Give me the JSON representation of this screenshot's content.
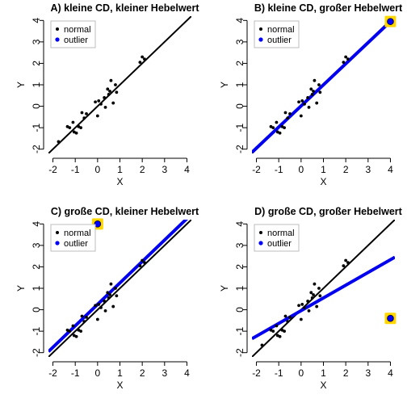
{
  "colors": {
    "normal_points": "#000000",
    "reference_line": "#000000",
    "outlier_point": "#0000ff",
    "outlier_ring": "#ffd700",
    "fit_line": "#0000ee"
  },
  "chart_data": [
    {
      "type": "scatter",
      "title": "A)  kleine CD, kleiner Hebelwert",
      "xlabel": "X",
      "ylabel": "Y",
      "xlim": [
        -2.2,
        4.2
      ],
      "ylim": [
        -2.2,
        4.2
      ],
      "xticks": [
        -2,
        -1,
        0,
        1,
        2,
        3,
        4
      ],
      "yticks": [
        -2,
        -1,
        0,
        1,
        2,
        3,
        4
      ],
      "legend": {
        "position": "top-left",
        "entries": [
          "normal",
          "outlier"
        ]
      },
      "series": [
        {
          "name": "normal",
          "points": [
            [
              -1.75,
              -1.65
            ],
            [
              -1.35,
              -0.95
            ],
            [
              -1.25,
              -1.0
            ],
            [
              -1.1,
              -0.75
            ],
            [
              -1.05,
              -1.2
            ],
            [
              -0.95,
              -1.25
            ],
            [
              -0.85,
              -0.95
            ],
            [
              -0.75,
              -1.0
            ],
            [
              -0.7,
              -0.3
            ],
            [
              -0.6,
              -0.55
            ],
            [
              -0.5,
              -0.35
            ],
            [
              -0.1,
              0.2
            ],
            [
              0.0,
              -0.45
            ],
            [
              0.05,
              0.25
            ],
            [
              0.15,
              0.1
            ],
            [
              0.3,
              0.4
            ],
            [
              0.35,
              -0.05
            ],
            [
              0.45,
              0.8
            ],
            [
              0.5,
              0.55
            ],
            [
              0.55,
              0.7
            ],
            [
              0.6,
              1.2
            ],
            [
              0.7,
              0.15
            ],
            [
              0.8,
              1.0
            ],
            [
              0.85,
              0.65
            ],
            [
              1.9,
              2.05
            ],
            [
              2.0,
              2.3
            ],
            [
              2.1,
              2.2
            ]
          ]
        },
        {
          "name": "outlier",
          "points": []
        }
      ],
      "lines": [
        {
          "role": "reference",
          "x": [
            -2.2,
            4.2
          ],
          "y": [
            -2.2,
            4.2
          ]
        }
      ]
    },
    {
      "type": "scatter",
      "title": "B)  kleine CD, großer Hebelwert",
      "xlabel": "X",
      "ylabel": "Y",
      "xlim": [
        -2.2,
        4.2
      ],
      "ylim": [
        -2.2,
        4.2
      ],
      "xticks": [
        -2,
        -1,
        0,
        1,
        2,
        3,
        4
      ],
      "yticks": [
        -2,
        -1,
        0,
        1,
        2,
        3,
        4
      ],
      "legend": {
        "position": "top-left",
        "entries": [
          "normal",
          "outlier"
        ]
      },
      "series": [
        {
          "name": "normal",
          "points": [
            [
              -1.35,
              -0.95
            ],
            [
              -1.25,
              -1.0
            ],
            [
              -1.1,
              -0.75
            ],
            [
              -1.05,
              -1.2
            ],
            [
              -0.95,
              -1.25
            ],
            [
              -0.85,
              -0.95
            ],
            [
              -0.75,
              -1.0
            ],
            [
              -0.7,
              -0.3
            ],
            [
              -0.6,
              -0.55
            ],
            [
              -0.5,
              -0.35
            ],
            [
              -0.1,
              0.2
            ],
            [
              0.0,
              -0.45
            ],
            [
              0.05,
              0.25
            ],
            [
              0.15,
              0.1
            ],
            [
              0.3,
              0.4
            ],
            [
              0.35,
              -0.05
            ],
            [
              0.45,
              0.8
            ],
            [
              0.5,
              0.55
            ],
            [
              0.55,
              0.7
            ],
            [
              0.6,
              1.2
            ],
            [
              0.7,
              0.15
            ],
            [
              0.8,
              1.0
            ],
            [
              0.85,
              0.65
            ],
            [
              1.9,
              2.05
            ],
            [
              2.0,
              2.3
            ],
            [
              2.1,
              2.2
            ]
          ]
        },
        {
          "name": "outlier",
          "points": [
            [
              4.0,
              3.95
            ]
          ]
        }
      ],
      "lines": [
        {
          "role": "reference",
          "x": [
            -2.2,
            4.2
          ],
          "y": [
            -2.2,
            4.2
          ]
        },
        {
          "role": "fit",
          "x": [
            -2.2,
            4.0
          ],
          "y": [
            -2.15,
            3.95
          ]
        }
      ]
    },
    {
      "type": "scatter",
      "title": "C)  große CD, kleiner Hebelwert",
      "xlabel": "X",
      "ylabel": "Y",
      "xlim": [
        -2.2,
        4.2
      ],
      "ylim": [
        -2.2,
        4.2
      ],
      "xticks": [
        -2,
        -1,
        0,
        1,
        2,
        3,
        4
      ],
      "yticks": [
        -2,
        -1,
        0,
        1,
        2,
        3,
        4
      ],
      "legend": {
        "position": "top-left",
        "entries": [
          "normal",
          "outlier"
        ]
      },
      "series": [
        {
          "name": "normal",
          "points": [
            [
              -1.35,
              -0.95
            ],
            [
              -1.25,
              -1.0
            ],
            [
              -1.1,
              -0.75
            ],
            [
              -1.05,
              -1.2
            ],
            [
              -0.95,
              -1.25
            ],
            [
              -0.85,
              -0.95
            ],
            [
              -0.75,
              -1.0
            ],
            [
              -0.7,
              -0.3
            ],
            [
              -0.6,
              -0.55
            ],
            [
              -0.5,
              -0.35
            ],
            [
              -0.1,
              0.2
            ],
            [
              0.0,
              -0.45
            ],
            [
              0.05,
              0.25
            ],
            [
              0.15,
              0.1
            ],
            [
              0.3,
              0.4
            ],
            [
              0.35,
              -0.05
            ],
            [
              0.45,
              0.8
            ],
            [
              0.5,
              0.55
            ],
            [
              0.55,
              0.7
            ],
            [
              0.6,
              1.2
            ],
            [
              0.7,
              0.15
            ],
            [
              0.8,
              1.0
            ],
            [
              0.85,
              0.65
            ],
            [
              1.9,
              2.05
            ],
            [
              2.0,
              2.3
            ],
            [
              2.1,
              2.2
            ]
          ]
        },
        {
          "name": "outlier",
          "points": [
            [
              0.0,
              4.0
            ]
          ]
        }
      ],
      "lines": [
        {
          "role": "reference",
          "x": [
            -2.2,
            4.2
          ],
          "y": [
            -2.2,
            4.2
          ]
        },
        {
          "role": "fit",
          "x": [
            -2.2,
            4.2
          ],
          "y": [
            -1.95,
            4.45
          ]
        }
      ]
    },
    {
      "type": "scatter",
      "title": "D)  große CD, großer Hebelwert",
      "xlabel": "X",
      "ylabel": "Y",
      "xlim": [
        -2.2,
        4.2
      ],
      "ylim": [
        -2.2,
        4.2
      ],
      "xticks": [
        -2,
        -1,
        0,
        1,
        2,
        3,
        4
      ],
      "yticks": [
        -2,
        -1,
        0,
        1,
        2,
        3,
        4
      ],
      "legend": {
        "position": "top-left",
        "entries": [
          "normal",
          "outlier"
        ]
      },
      "series": [
        {
          "name": "normal",
          "points": [
            [
              -1.75,
              -1.65
            ],
            [
              -1.35,
              -0.95
            ],
            [
              -1.25,
              -1.0
            ],
            [
              -1.1,
              -0.75
            ],
            [
              -1.05,
              -1.2
            ],
            [
              -0.95,
              -1.25
            ],
            [
              -0.85,
              -0.95
            ],
            [
              -0.75,
              -1.0
            ],
            [
              -0.7,
              -0.3
            ],
            [
              -0.6,
              -0.55
            ],
            [
              -0.5,
              -0.35
            ],
            [
              -0.1,
              0.2
            ],
            [
              0.0,
              -0.45
            ],
            [
              0.05,
              0.25
            ],
            [
              0.15,
              0.1
            ],
            [
              0.3,
              0.4
            ],
            [
              0.35,
              -0.05
            ],
            [
              0.45,
              0.8
            ],
            [
              0.5,
              0.55
            ],
            [
              0.55,
              0.7
            ],
            [
              0.6,
              1.2
            ],
            [
              0.7,
              0.15
            ],
            [
              0.8,
              1.0
            ],
            [
              0.85,
              0.65
            ],
            [
              1.9,
              2.05
            ],
            [
              2.0,
              2.3
            ],
            [
              2.1,
              2.2
            ]
          ]
        },
        {
          "name": "outlier",
          "points": [
            [
              4.0,
              -0.4
            ]
          ]
        }
      ],
      "lines": [
        {
          "role": "reference",
          "x": [
            -2.2,
            4.2
          ],
          "y": [
            -2.2,
            4.2
          ]
        },
        {
          "role": "fit",
          "x": [
            -2.2,
            4.2
          ],
          "y": [
            -1.35,
            2.45
          ]
        }
      ]
    }
  ]
}
